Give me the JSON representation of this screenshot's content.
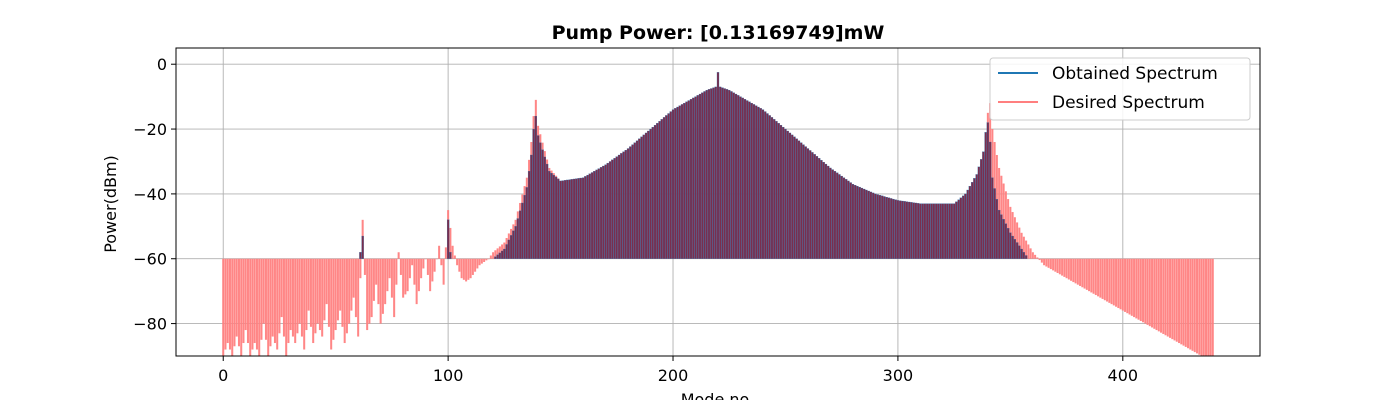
{
  "chart_data": {
    "type": "bar",
    "title": "Pump Power: [0.13169749]mW",
    "xlabel": "Mode no",
    "ylabel": "Power(dBm)",
    "xlim": [
      -21,
      461
    ],
    "ylim": [
      -90,
      5
    ],
    "baseline": -60,
    "grid": true,
    "legend_position": "top-right",
    "x_ticks": [
      0,
      100,
      200,
      300,
      400
    ],
    "x_tick_labels": [
      "0",
      "100",
      "200",
      "300",
      "400"
    ],
    "y_ticks": [
      0,
      -20,
      -40,
      -60,
      -80
    ],
    "y_tick_labels": [
      "0",
      "−20",
      "−40",
      "−60",
      "−80"
    ],
    "series": [
      {
        "name": "Obtained Spectrum",
        "color": "#1f77b4",
        "note": "bars above -60 dBm nearly coincide with desired spectrum",
        "x": [
          60,
          61,
          62,
          63,
          89,
          99,
          100,
          101,
          102,
          120,
          125,
          130,
          135,
          137,
          138,
          139,
          140,
          145,
          150,
          160,
          170,
          180,
          190,
          200,
          210,
          215,
          219,
          220,
          221,
          225,
          230,
          240,
          250,
          260,
          270,
          280,
          290,
          300,
          310,
          320,
          325,
          330,
          335,
          338,
          339,
          340,
          341,
          342,
          345,
          350,
          355,
          358
        ],
        "values": [
          -60,
          -58,
          -53,
          -60,
          -60,
          -60,
          -48,
          -58,
          -60,
          -60,
          -57,
          -50,
          -38,
          -28,
          -20,
          -16,
          -22,
          -33,
          -36,
          -35,
          -31,
          -26,
          -20,
          -14,
          -10,
          -8,
          -7,
          -2.5,
          -7,
          -8,
          -10,
          -14,
          -20,
          -26,
          -32,
          -37,
          -40,
          -42,
          -43,
          -43,
          -43,
          -40,
          -34,
          -27,
          -21,
          -18,
          -24,
          -35,
          -45,
          -52,
          -57,
          -60
        ]
      },
      {
        "name": "Desired Spectrum",
        "color": "#ff7f7f",
        "x": [
          0,
          2,
          4,
          6,
          8,
          10,
          12,
          14,
          16,
          18,
          20,
          22,
          24,
          26,
          28,
          30,
          32,
          34,
          36,
          38,
          40,
          42,
          44,
          46,
          48,
          50,
          52,
          54,
          56,
          58,
          60,
          62,
          64,
          66,
          68,
          70,
          72,
          74,
          76,
          78,
          80,
          82,
          84,
          86,
          88,
          90,
          92,
          94,
          96,
          98,
          100,
          102,
          104,
          106,
          108,
          110,
          112,
          114,
          116,
          118,
          120,
          125,
          130,
          135,
          137,
          138,
          139,
          140,
          145,
          150,
          160,
          170,
          180,
          190,
          200,
          210,
          215,
          219,
          220,
          221,
          225,
          230,
          240,
          250,
          260,
          270,
          280,
          290,
          300,
          310,
          320,
          325,
          330,
          335,
          338,
          339,
          340,
          341,
          342,
          345,
          350,
          355,
          360,
          365,
          370,
          375,
          380,
          385,
          390,
          395,
          400,
          405,
          410,
          415,
          420,
          425,
          430,
          435,
          440
        ],
        "values": [
          -90,
          -86,
          -90,
          -84,
          -90,
          -82,
          -90,
          -86,
          -90,
          -80,
          -90,
          -84,
          -88,
          -78,
          -90,
          -82,
          -86,
          -80,
          -88,
          -76,
          -86,
          -80,
          -84,
          -74,
          -88,
          -82,
          -76,
          -86,
          -80,
          -72,
          -84,
          -48,
          -82,
          -78,
          -68,
          -80,
          -74,
          -66,
          -78,
          -58,
          -72,
          -70,
          -62,
          -74,
          -66,
          -60,
          -70,
          -64,
          -56,
          -68,
          -45,
          -56,
          -62,
          -66,
          -67,
          -66,
          -64,
          -62,
          -61,
          -60,
          -58,
          -55,
          -48,
          -35,
          -24,
          -16,
          -11,
          -19,
          -32,
          -36,
          -35,
          -31,
          -26,
          -20,
          -14,
          -10,
          -8,
          -7,
          -7,
          -7,
          -8,
          -10,
          -14,
          -20,
          -26,
          -32,
          -37,
          -40,
          -42,
          -43,
          -43,
          -43,
          -41,
          -36,
          -28,
          -22,
          -15,
          -12,
          -20,
          -32,
          -44,
          -52,
          -58,
          -62,
          -64,
          -66,
          -68,
          -70,
          -72,
          -74,
          -76,
          -78,
          -80,
          -82,
          -84,
          -86,
          -88,
          -90,
          -90
        ]
      }
    ]
  }
}
